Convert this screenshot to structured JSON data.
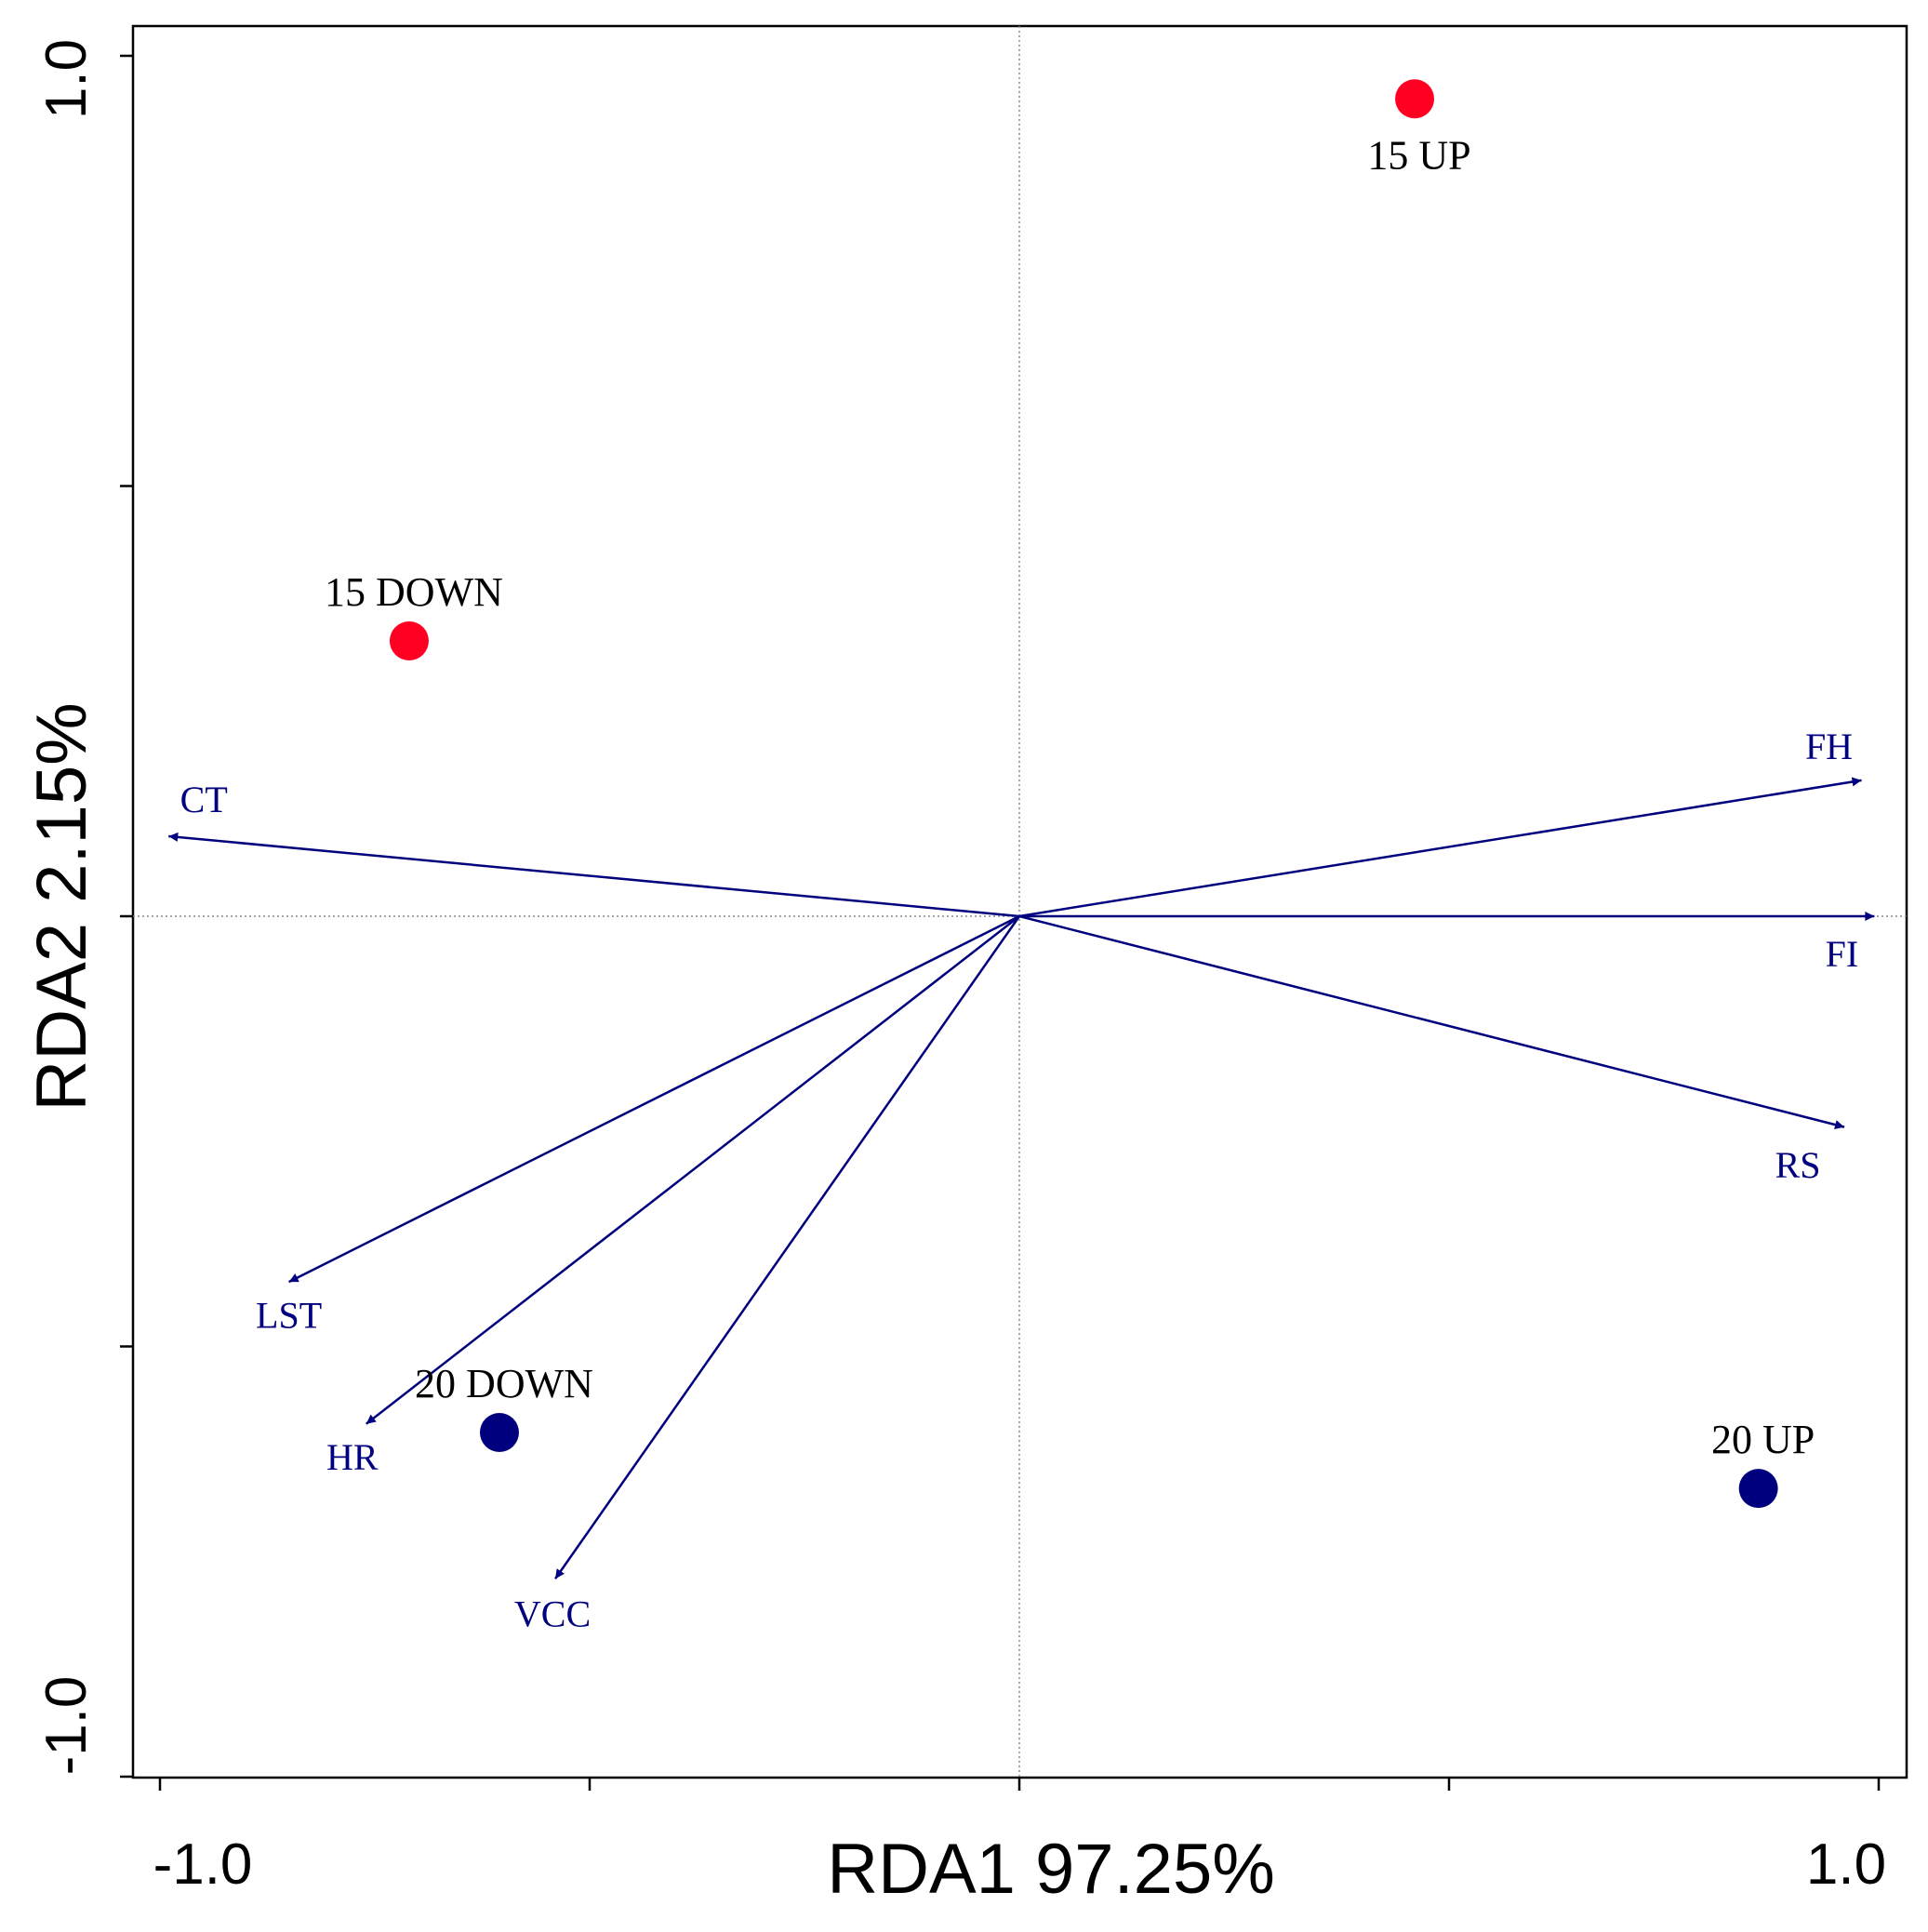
{
  "chart_data": {
    "type": "scatter",
    "subtype": "RDA biplot",
    "xlabel": "RDA1 97.25%",
    "ylabel": "RDA2 2.15%",
    "xlim": [
      -1.0,
      1.0
    ],
    "ylim": [
      -1.0,
      1.0
    ],
    "x_tick_labels": [
      "-1.0",
      "1.0"
    ],
    "y_tick_labels": [
      "-1.0",
      "1.0"
    ],
    "reference_lines": "dotted lines at x = 0 and y = 0",
    "arrow_color": "#00007F",
    "samples": [
      {
        "name": "15 UP",
        "x": 0.46,
        "y": 0.95,
        "color": "#FF0022",
        "label_position": "below"
      },
      {
        "name": "15 DOWN",
        "x": -0.71,
        "y": 0.32,
        "color": "#FF0022",
        "label_position": "above"
      },
      {
        "name": "20 DOWN",
        "x": -0.605,
        "y": -0.6,
        "color": "#00007F",
        "label_position": "above"
      },
      {
        "name": "20 UP",
        "x": 0.86,
        "y": -0.665,
        "color": "#00007F",
        "label_position": "above"
      }
    ],
    "vectors": [
      {
        "name": "CT",
        "x": -0.99,
        "y": 0.093
      },
      {
        "name": "FH",
        "x": 0.98,
        "y": 0.158
      },
      {
        "name": "FI",
        "x": 0.995,
        "y": 0.0
      },
      {
        "name": "RS",
        "x": 0.96,
        "y": -0.245
      },
      {
        "name": "LST",
        "x": -0.85,
        "y": -0.425
      },
      {
        "name": "HR",
        "x": -0.76,
        "y": -0.59
      },
      {
        "name": "VCC",
        "x": -0.54,
        "y": -0.77
      }
    ]
  }
}
